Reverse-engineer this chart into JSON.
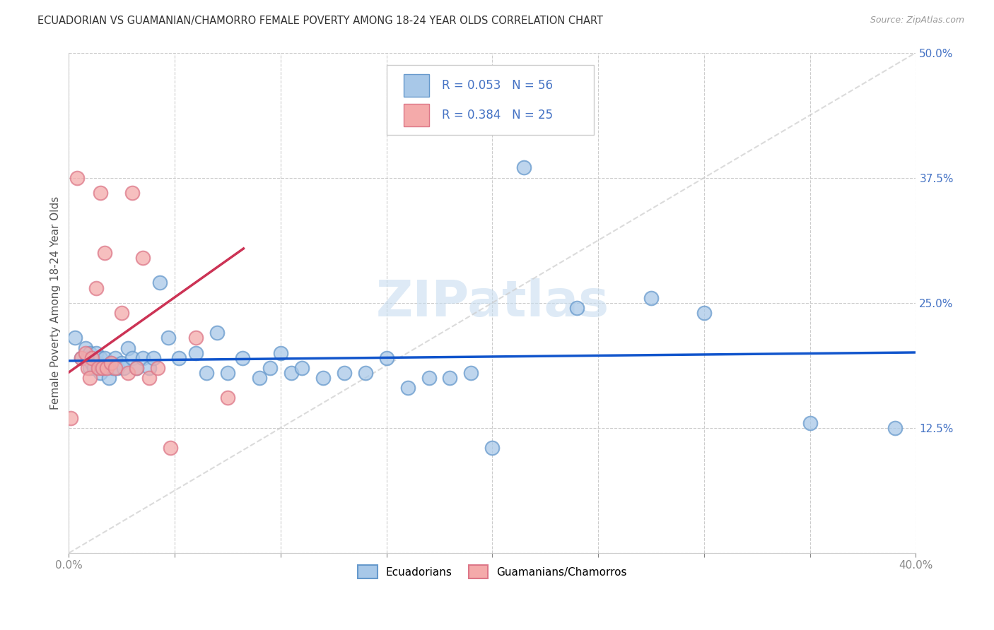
{
  "title": "ECUADORIAN VS GUAMANIAN/CHAMORRO FEMALE POVERTY AMONG 18-24 YEAR OLDS CORRELATION CHART",
  "source": "Source: ZipAtlas.com",
  "ylabel": "Female Poverty Among 18-24 Year Olds",
  "xlim": [
    0.0,
    0.4
  ],
  "ylim": [
    0.0,
    0.5
  ],
  "xticks": [
    0.0,
    0.05,
    0.1,
    0.15,
    0.2,
    0.25,
    0.3,
    0.35,
    0.4
  ],
  "yticks": [
    0.0,
    0.125,
    0.25,
    0.375,
    0.5
  ],
  "watermark": "ZIPatlas",
  "legend_r1": "R = 0.053",
  "legend_n1": "N = 56",
  "legend_r2": "R = 0.384",
  "legend_n2": "N = 25",
  "color_blue": "#a8c8e8",
  "color_blue_edge": "#6699cc",
  "color_pink": "#f4aaaa",
  "color_pink_edge": "#dd7788",
  "color_trend_blue": "#1155cc",
  "color_trend_pink": "#cc3355",
  "color_trend_diag": "#cccccc",
  "grid_color": "#cccccc",
  "tick_color_right": "#4472c4",
  "blue_points_x": [
    0.003,
    0.006,
    0.008,
    0.009,
    0.01,
    0.01,
    0.011,
    0.012,
    0.013,
    0.014,
    0.015,
    0.015,
    0.016,
    0.017,
    0.018,
    0.019,
    0.02,
    0.021,
    0.022,
    0.023,
    0.025,
    0.026,
    0.028,
    0.03,
    0.032,
    0.035,
    0.038,
    0.04,
    0.043,
    0.047,
    0.052,
    0.06,
    0.065,
    0.07,
    0.075,
    0.082,
    0.09,
    0.095,
    0.1,
    0.105,
    0.11,
    0.12,
    0.13,
    0.14,
    0.15,
    0.16,
    0.17,
    0.18,
    0.19,
    0.2,
    0.215,
    0.24,
    0.275,
    0.3,
    0.35,
    0.39
  ],
  "blue_points_y": [
    0.215,
    0.195,
    0.205,
    0.195,
    0.185,
    0.2,
    0.19,
    0.185,
    0.2,
    0.19,
    0.195,
    0.18,
    0.185,
    0.195,
    0.185,
    0.175,
    0.19,
    0.185,
    0.195,
    0.185,
    0.19,
    0.185,
    0.205,
    0.195,
    0.185,
    0.195,
    0.185,
    0.195,
    0.27,
    0.215,
    0.195,
    0.2,
    0.18,
    0.22,
    0.18,
    0.195,
    0.175,
    0.185,
    0.2,
    0.18,
    0.185,
    0.175,
    0.18,
    0.18,
    0.195,
    0.165,
    0.175,
    0.175,
    0.18,
    0.105,
    0.385,
    0.245,
    0.255,
    0.24,
    0.13,
    0.125
  ],
  "pink_points_x": [
    0.001,
    0.004,
    0.006,
    0.008,
    0.009,
    0.01,
    0.011,
    0.013,
    0.014,
    0.015,
    0.016,
    0.017,
    0.018,
    0.02,
    0.022,
    0.025,
    0.028,
    0.03,
    0.032,
    0.035,
    0.038,
    0.042,
    0.048,
    0.06,
    0.075
  ],
  "pink_points_y": [
    0.135,
    0.375,
    0.195,
    0.2,
    0.185,
    0.175,
    0.195,
    0.265,
    0.185,
    0.36,
    0.185,
    0.3,
    0.185,
    0.19,
    0.185,
    0.24,
    0.18,
    0.36,
    0.185,
    0.295,
    0.175,
    0.185,
    0.105,
    0.215,
    0.155
  ]
}
